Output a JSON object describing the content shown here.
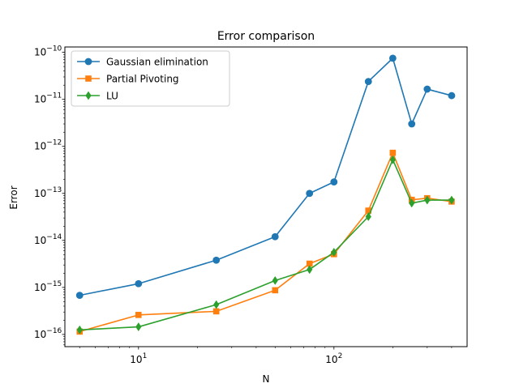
{
  "chart_data": {
    "type": "line",
    "title": "Error comparison",
    "xlabel": "N",
    "ylabel": "Error",
    "xscale": "log",
    "yscale": "log",
    "xlim": [
      4.2,
      480
    ],
    "ylim": [
      5.5e-17,
      1.3e-10
    ],
    "grid": false,
    "legend_position": "upper-left",
    "x_ticks": [
      {
        "value": 10,
        "base": "10",
        "exp": "1"
      },
      {
        "value": 100,
        "base": "10",
        "exp": "2"
      }
    ],
    "y_ticks": [
      {
        "value": 1e-16,
        "base": "10",
        "exp": "−16"
      },
      {
        "value": 1e-15,
        "base": "10",
        "exp": "−15"
      },
      {
        "value": 1e-14,
        "base": "10",
        "exp": "−14"
      },
      {
        "value": 1e-13,
        "base": "10",
        "exp": "−13"
      },
      {
        "value": 1e-12,
        "base": "10",
        "exp": "−12"
      },
      {
        "value": 1e-11,
        "base": "10",
        "exp": "−11"
      },
      {
        "value": 1e-10,
        "base": "10",
        "exp": "−10"
      }
    ],
    "x": [
      5,
      10,
      25,
      50,
      75,
      100,
      150,
      200,
      250,
      300,
      400
    ],
    "series": [
      {
        "name": "Gaussian elimination",
        "color": "#1f77b4",
        "marker": "circle",
        "values": [
          6.8e-16,
          1.2e-15,
          3.8e-15,
          1.2e-14,
          1e-13,
          1.75e-13,
          2.4e-11,
          7.5e-11,
          3e-12,
          1.65e-11,
          1.2e-11
        ]
      },
      {
        "name": "Partial Pivoting",
        "color": "#ff7f0e",
        "marker": "square",
        "values": [
          1.15e-16,
          2.6e-16,
          3.1e-16,
          8.7e-16,
          3.2e-15,
          5.1e-15,
          4.3e-14,
          7.3e-13,
          7.3e-14,
          7.9e-14,
          6.7e-14
        ]
      },
      {
        "name": "LU",
        "color": "#2ca02c",
        "marker": "diamond",
        "values": [
          1.25e-16,
          1.45e-16,
          4.3e-16,
          1.4e-15,
          2.4e-15,
          5.6e-15,
          3.2e-14,
          5.2e-13,
          6.2e-14,
          7.2e-14,
          7.2e-14
        ]
      }
    ]
  }
}
